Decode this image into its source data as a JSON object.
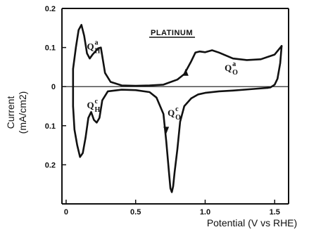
{
  "chart_data": {
    "type": "line",
    "title": "PLATINUM",
    "xlabel": "Potential (V vs RHE)",
    "ylabel_line1": "Current",
    "ylabel_line2": "(mA/cm2)",
    "xlim": [
      -0.03,
      1.6
    ],
    "ylim": [
      -0.3,
      0.2
    ],
    "x_ticks": [
      {
        "value": 0,
        "label": "0"
      },
      {
        "value": 0.5,
        "label": "0.5"
      },
      {
        "value": 1.0,
        "label": "1.0"
      },
      {
        "value": 1.5,
        "label": "1.5"
      }
    ],
    "y_ticks": [
      {
        "value": 0.2,
        "label": "0.2"
      },
      {
        "value": 0.1,
        "label": "0.1"
      },
      {
        "value": 0,
        "label": "0"
      },
      {
        "value": -0.1,
        "label": "0.1"
      },
      {
        "value": -0.2,
        "label": "0.2"
      }
    ],
    "series": [
      {
        "key": "anodic",
        "color": "#111111",
        "x": [
          0.05,
          0.07,
          0.09,
          0.11,
          0.13,
          0.15,
          0.17,
          0.19,
          0.21,
          0.23,
          0.25,
          0.28,
          0.32,
          0.4,
          0.5,
          0.6,
          0.7,
          0.8,
          0.85,
          0.9,
          0.93,
          0.96,
          1.0,
          1.05,
          1.1,
          1.2,
          1.3,
          1.4,
          1.5,
          1.55
        ],
        "y": [
          0.045,
          0.1,
          0.145,
          0.158,
          0.13,
          0.085,
          0.072,
          0.082,
          0.09,
          0.098,
          0.1,
          0.035,
          0.012,
          0.003,
          0.002,
          0.003,
          0.005,
          0.018,
          0.032,
          0.065,
          0.087,
          0.09,
          0.088,
          0.093,
          0.087,
          0.072,
          0.068,
          0.07,
          0.082,
          0.104
        ]
      },
      {
        "key": "return",
        "color": "#111111",
        "x": [
          1.55,
          1.54,
          1.52,
          1.5,
          1.47,
          1.45
        ],
        "y": [
          0.104,
          0.06,
          0.02,
          0.005,
          -0.002,
          -0.003
        ]
      },
      {
        "key": "cathodic",
        "color": "#111111",
        "x": [
          1.45,
          1.35,
          1.2,
          1.1,
          1.0,
          0.95,
          0.9,
          0.85,
          0.82,
          0.8,
          0.78,
          0.77,
          0.76,
          0.75,
          0.74,
          0.72,
          0.7,
          0.65,
          0.6,
          0.5,
          0.4,
          0.3,
          0.26,
          0.24,
          0.22,
          0.2,
          0.18,
          0.16,
          0.14,
          0.12,
          0.1,
          0.08,
          0.06,
          0.05
        ],
        "y": [
          -0.003,
          -0.006,
          -0.01,
          -0.012,
          -0.016,
          -0.02,
          -0.03,
          -0.05,
          -0.09,
          -0.16,
          -0.22,
          -0.255,
          -0.27,
          -0.26,
          -0.22,
          -0.14,
          -0.07,
          -0.028,
          -0.014,
          -0.009,
          -0.008,
          -0.012,
          -0.035,
          -0.08,
          -0.092,
          -0.085,
          -0.065,
          -0.08,
          -0.13,
          -0.17,
          -0.18,
          -0.15,
          -0.11,
          -0.05
        ]
      },
      {
        "key": "closing",
        "color": "#111111",
        "x": [
          0.05,
          0.05
        ],
        "y": [
          -0.05,
          0.045
        ]
      }
    ],
    "zero_line": {
      "y": 0,
      "color": "#111111"
    },
    "annotations": [
      {
        "key": "qha",
        "main": "Q",
        "sub": "H",
        "sup": "a",
        "x": 0.15,
        "y": 0.095
      },
      {
        "key": "qhc",
        "main": "Q",
        "sub": "H",
        "sup": "c",
        "x": 0.15,
        "y": -0.055
      },
      {
        "key": "qoc",
        "main": "Q",
        "sub": "O",
        "sup": "c",
        "x": 0.73,
        "y": -0.075
      },
      {
        "key": "qoa",
        "main": "Q",
        "sub": "O",
        "sup": "a",
        "x": 1.14,
        "y": 0.04
      }
    ],
    "arrows": [
      {
        "key": "anodic-arrow",
        "x": 0.86,
        "y": 0.035,
        "direction": "up"
      },
      {
        "key": "cathodic-arrow",
        "x": 0.72,
        "y": -0.11,
        "direction": "down"
      }
    ],
    "grid": false,
    "legend": "none"
  }
}
